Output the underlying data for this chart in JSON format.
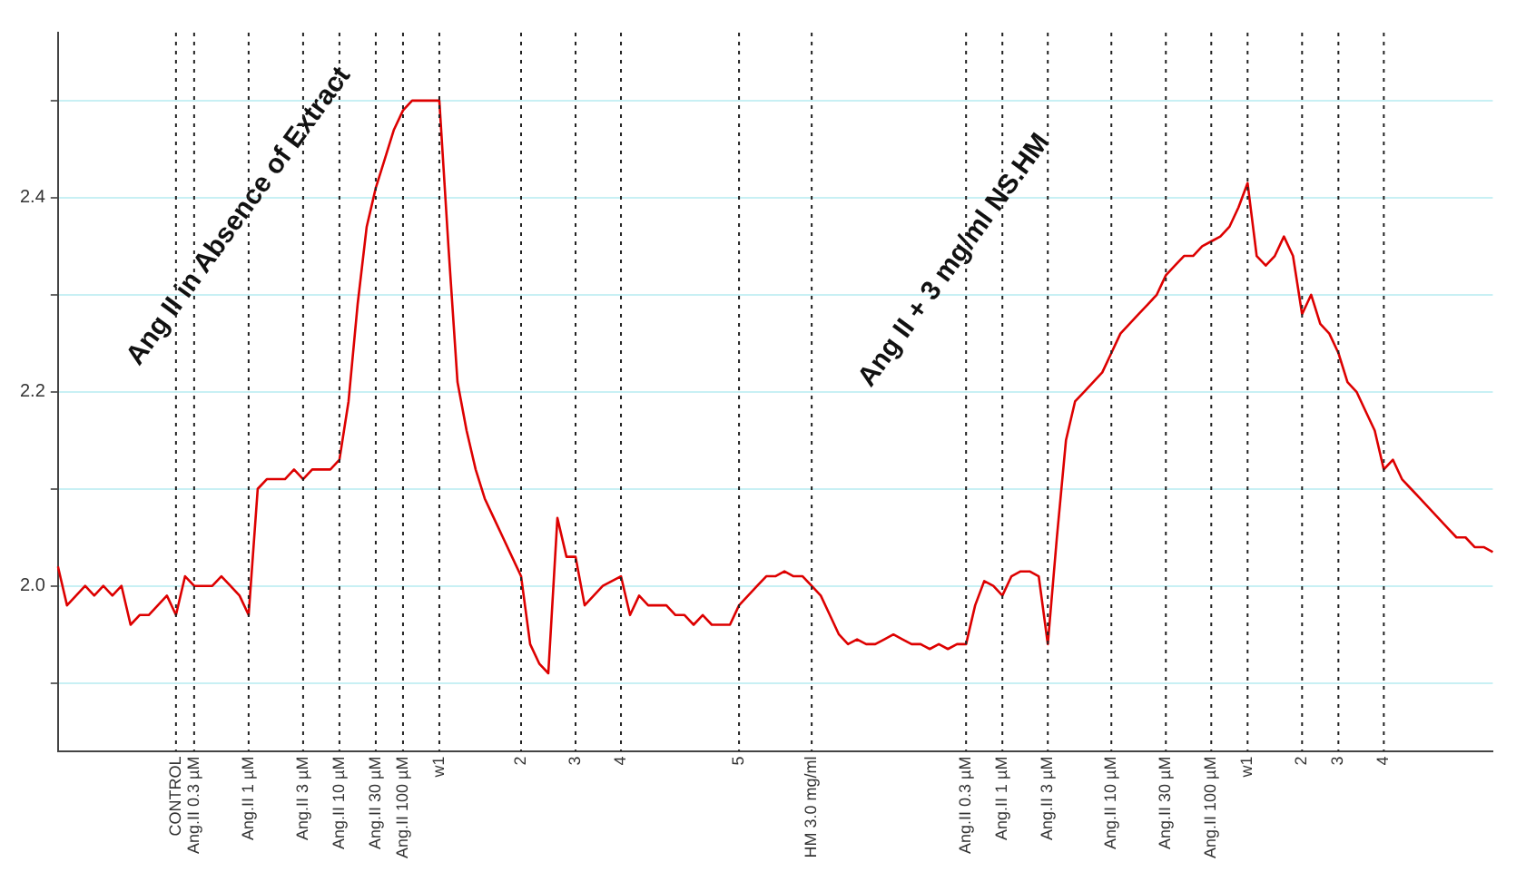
{
  "chart_data": {
    "type": "line",
    "categories": [
      null,
      null,
      null,
      null,
      null,
      null,
      null,
      null,
      null,
      null,
      null,
      null,
      null,
      "CONTROL",
      null,
      "Ang.II 0.3 µM",
      null,
      null,
      null,
      null,
      null,
      "Ang.II 1 µM",
      null,
      null,
      null,
      null,
      null,
      "Ang.II 3 µM",
      null,
      null,
      null,
      "Ang.II 10 µM",
      null,
      null,
      null,
      "Ang.II 30 µM",
      null,
      null,
      "Ang.II 100 µM",
      null,
      null,
      null,
      "w1",
      null,
      null,
      null,
      null,
      null,
      null,
      null,
      null,
      "2",
      null,
      null,
      null,
      null,
      null,
      "3",
      null,
      null,
      null,
      null,
      "4",
      null,
      null,
      null,
      null,
      null,
      null,
      null,
      null,
      null,
      null,
      null,
      null,
      "5",
      null,
      null,
      null,
      null,
      null,
      null,
      null,
      "HM 3.0 mg/ml",
      null,
      null,
      null,
      null,
      null,
      null,
      null,
      null,
      null,
      null,
      null,
      null,
      null,
      null,
      null,
      null,
      "Ang.II 0.3 µM",
      null,
      null,
      null,
      "Ang.II 1 µM",
      null,
      null,
      null,
      null,
      "Ang.II 3 µM",
      null,
      null,
      null,
      null,
      null,
      null,
      "Ang.II 10 µM",
      null,
      null,
      null,
      null,
      null,
      "Ang.II 30 µM",
      null,
      null,
      null,
      null,
      "Ang.II 100 µM",
      null,
      null,
      null,
      "w1",
      null,
      null,
      null,
      null,
      null,
      "2",
      null,
      null,
      null,
      "3",
      null,
      null,
      null,
      null,
      "4",
      null,
      null,
      null,
      null,
      null,
      null,
      null,
      null,
      null,
      null,
      null,
      null
    ],
    "series": [
      {
        "color": "#dd0000",
        "values": [
          2.02,
          1.98,
          1.99,
          2.0,
          1.99,
          2.0,
          1.99,
          2.0,
          1.96,
          1.97,
          1.97,
          1.98,
          1.99,
          1.97,
          2.01,
          2.0,
          2.0,
          2.0,
          2.01,
          2.0,
          1.99,
          1.97,
          2.1,
          2.11,
          2.11,
          2.11,
          2.12,
          2.11,
          2.12,
          2.12,
          2.12,
          2.13,
          2.19,
          2.29,
          2.37,
          2.41,
          2.44,
          2.47,
          2.49,
          2.5,
          2.5,
          2.5,
          2.5,
          2.35,
          2.21,
          2.16,
          2.12,
          2.09,
          2.07,
          2.05,
          2.03,
          2.01,
          1.94,
          1.92,
          1.91,
          2.07,
          2.03,
          2.03,
          1.98,
          1.99,
          2.0,
          2.005,
          2.01,
          1.97,
          1.99,
          1.98,
          1.98,
          1.98,
          1.97,
          1.97,
          1.96,
          1.97,
          1.96,
          1.96,
          1.96,
          1.98,
          1.99,
          2.0,
          2.01,
          2.01,
          2.015,
          2.01,
          2.01,
          2.0,
          1.99,
          1.97,
          1.95,
          1.94,
          1.945,
          1.94,
          1.94,
          1.945,
          1.95,
          1.945,
          1.94,
          1.94,
          1.935,
          1.94,
          1.935,
          1.94,
          1.94,
          1.98,
          2.005,
          2.0,
          1.99,
          2.01,
          2.015,
          2.015,
          2.01,
          1.94,
          2.05,
          2.15,
          2.19,
          2.2,
          2.21,
          2.22,
          2.24,
          2.26,
          2.27,
          2.28,
          2.29,
          2.3,
          2.32,
          2.33,
          2.34,
          2.34,
          2.35,
          2.355,
          2.36,
          2.37,
          2.39,
          2.415,
          2.34,
          2.33,
          2.34,
          2.36,
          2.34,
          2.28,
          2.3,
          2.27,
          2.26,
          2.24,
          2.21,
          2.2,
          2.18,
          2.16,
          2.12,
          2.13,
          2.11,
          2.1,
          2.09,
          2.08,
          2.07,
          2.06,
          2.05,
          2.05,
          2.04,
          2.04,
          2.035
        ]
      }
    ],
    "ylim": [
      1.83,
      2.57
    ],
    "yticks": [
      {
        "value": 1.9,
        "label": null
      },
      {
        "value": 2.0,
        "label": "2.0"
      },
      {
        "value": 2.1,
        "label": null
      },
      {
        "value": 2.2,
        "label": "2.2"
      },
      {
        "value": 2.3,
        "label": null
      },
      {
        "value": 2.4,
        "label": "2.4"
      },
      {
        "value": 2.5,
        "label": null
      }
    ],
    "annotations": [
      "Ang II in Absence of Extract",
      "Ang II + 3 mg/ml NS.HM"
    ],
    "grid": true,
    "legend": false,
    "marker": "none",
    "line_style": "solid"
  }
}
